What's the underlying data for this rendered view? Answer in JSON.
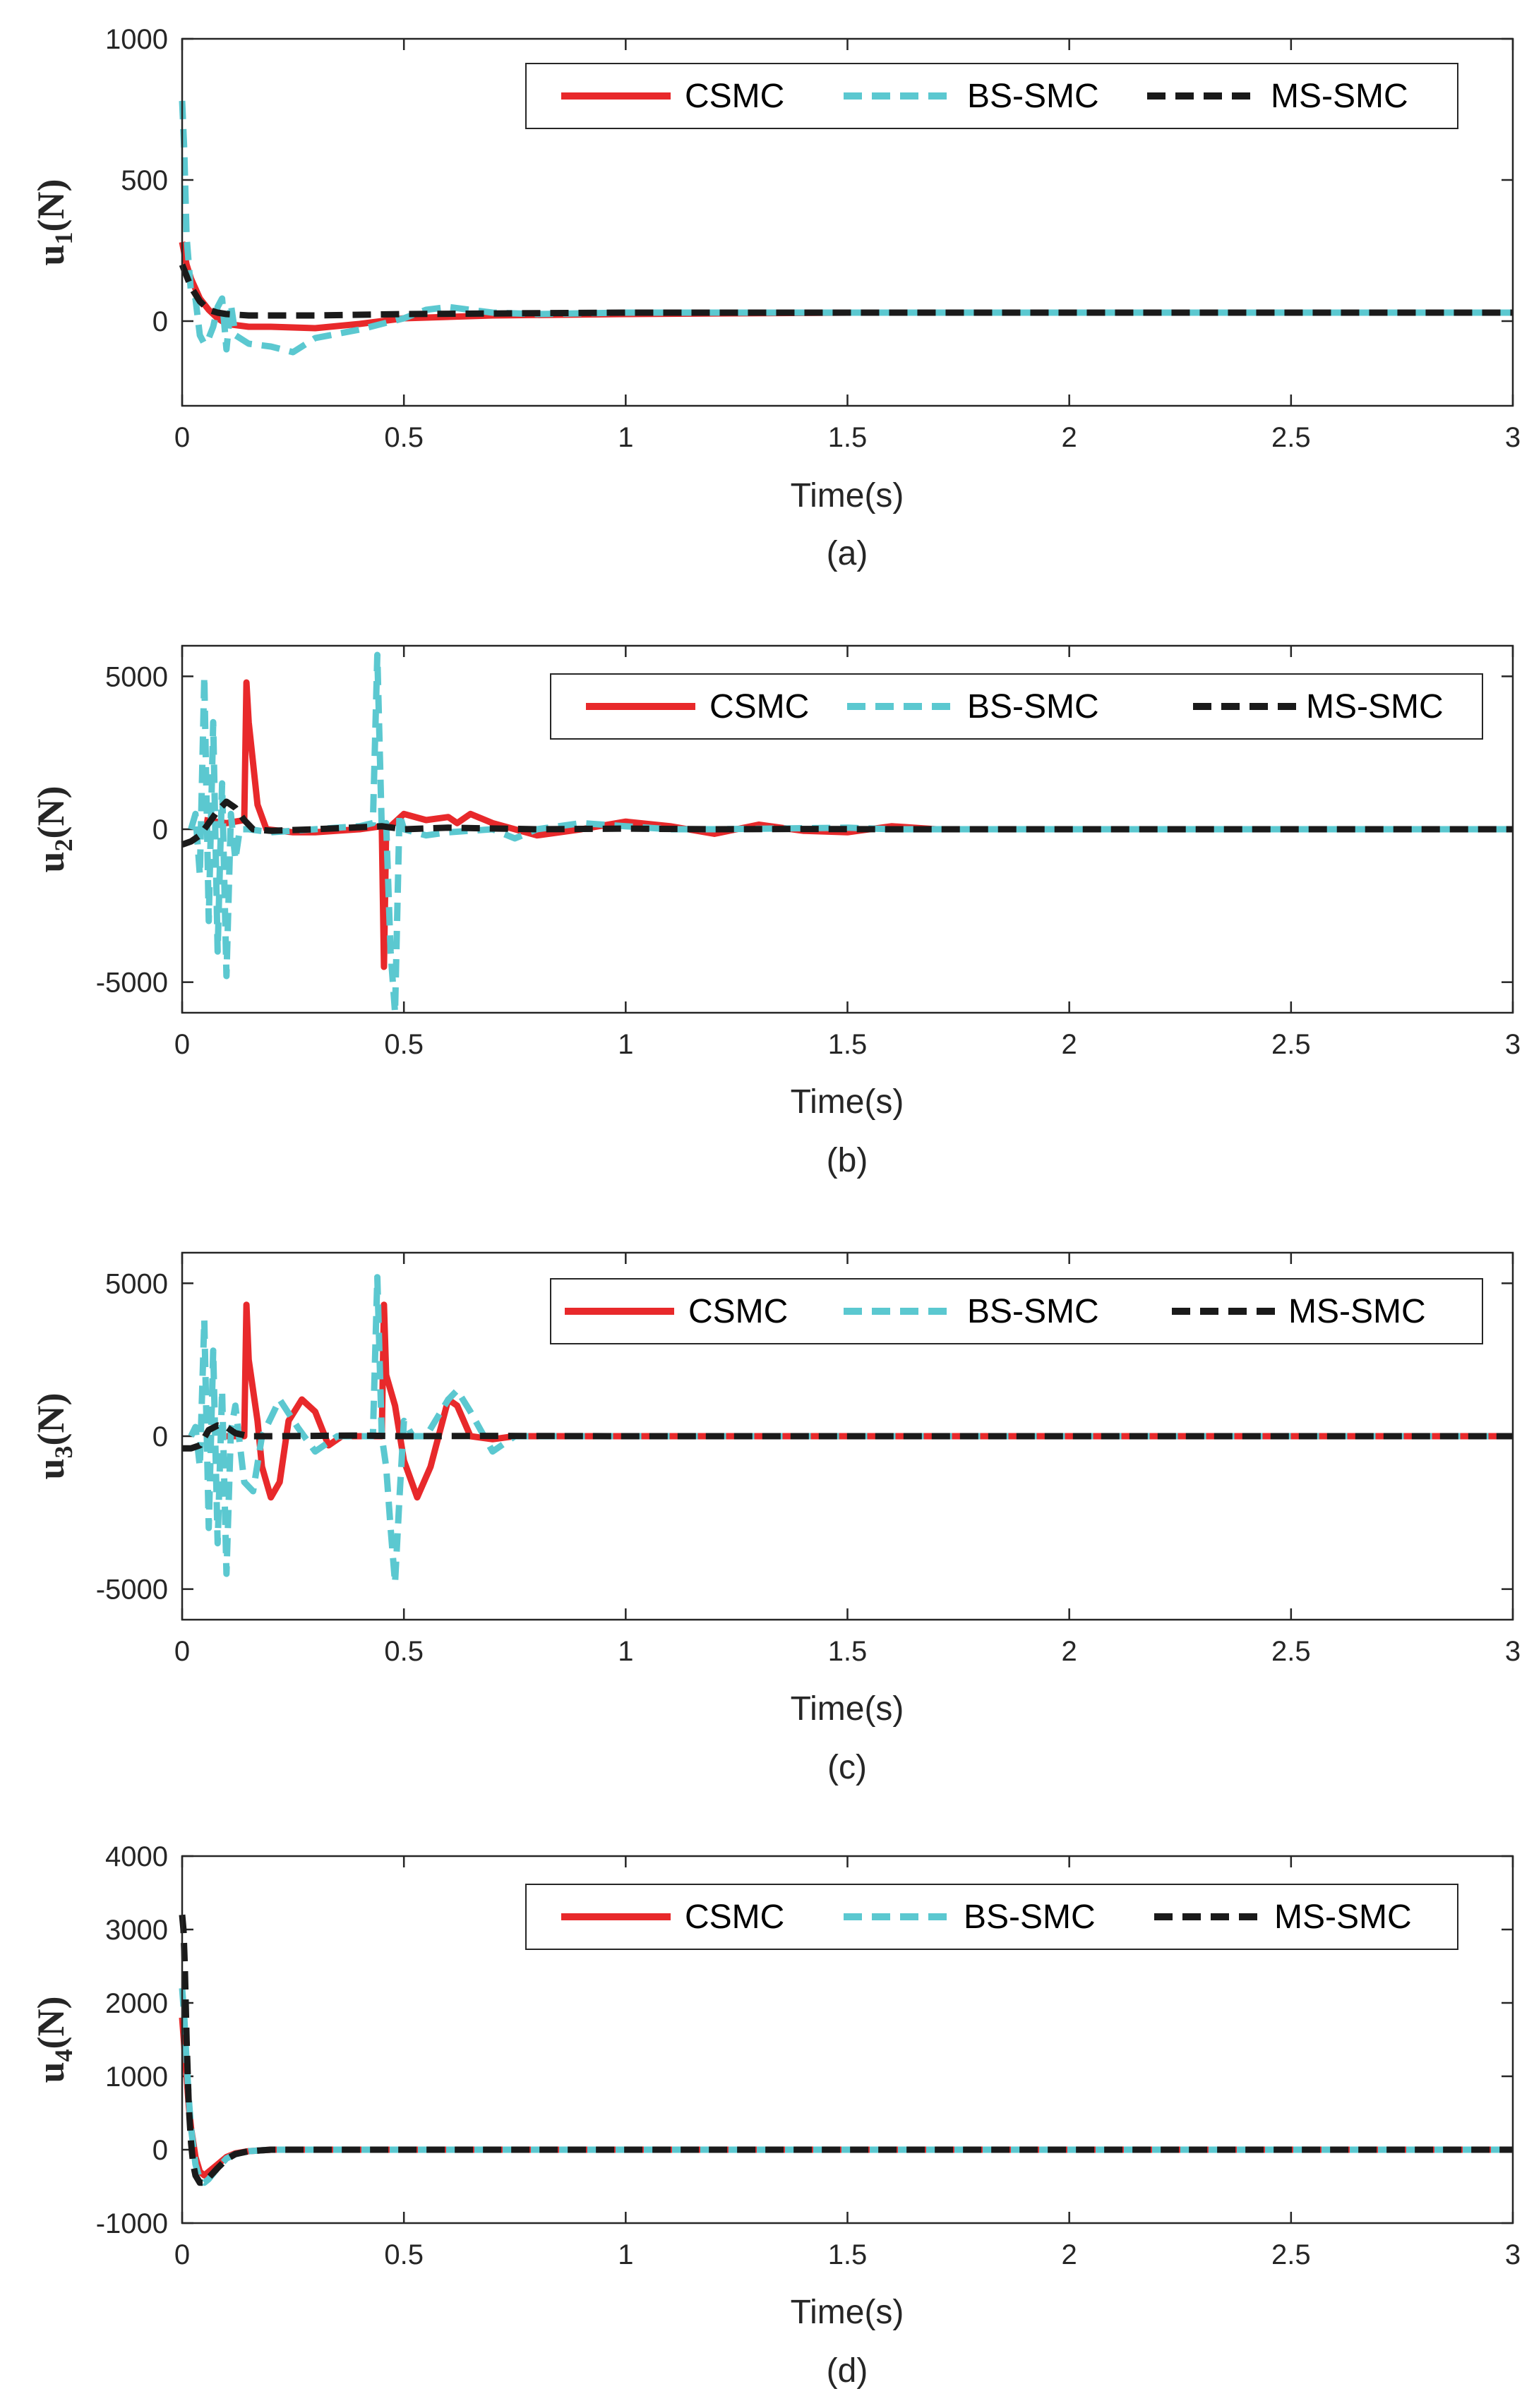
{
  "colors": {
    "CSMC": "#e8292b",
    "BS-SMC": "#5bc8d0",
    "MS-SMC": "#1a1a1a",
    "axis": "#262626",
    "background": "#ffffff"
  },
  "chart_data": [
    {
      "type": "line",
      "caption": "(a)",
      "xlabel": "Time(s)",
      "ylabel_main": "u",
      "ylabel_sub": "1",
      "ylabel_unit": "(N)",
      "xlim": [
        0,
        3
      ],
      "ylim": [
        -300,
        1000
      ],
      "xticks": [
        0,
        0.5,
        1,
        1.5,
        2,
        2.5,
        3
      ],
      "xtick_labels": [
        "0",
        "0.5",
        "1",
        "1.5",
        "2",
        "2.5",
        "3"
      ],
      "yticks": [
        1000,
        500,
        0
      ],
      "ytick_labels": [
        "1000",
        "500",
        "0"
      ],
      "legend": [
        "CSMC",
        "BS-SMC",
        "MS-SMC"
      ],
      "series": [
        {
          "name": "CSMC",
          "style": "solid",
          "x": [
            0,
            0.01,
            0.02,
            0.04,
            0.06,
            0.08,
            0.1,
            0.15,
            0.2,
            0.3,
            0.4,
            0.5,
            0.7,
            1,
            1.5,
            2,
            3
          ],
          "y": [
            280,
            200,
            150,
            80,
            40,
            10,
            -10,
            -20,
            -20,
            -25,
            -10,
            10,
            20,
            25,
            30,
            30,
            30
          ]
        },
        {
          "name": "BS-SMC",
          "style": "dashed",
          "x": [
            0,
            0.005,
            0.01,
            0.02,
            0.03,
            0.04,
            0.05,
            0.06,
            0.07,
            0.08,
            0.09,
            0.1,
            0.11,
            0.12,
            0.15,
            0.2,
            0.25,
            0.3,
            0.4,
            0.5,
            0.55,
            0.6,
            0.7,
            0.8,
            1,
            1.5,
            3
          ],
          "y": [
            780,
            600,
            300,
            100,
            80,
            -50,
            -80,
            -60,
            -20,
            50,
            80,
            -100,
            60,
            -50,
            -80,
            -90,
            -110,
            -60,
            -30,
            10,
            40,
            50,
            30,
            25,
            30,
            30,
            30
          ]
        },
        {
          "name": "MS-SMC",
          "style": "dashed",
          "x": [
            0,
            0.01,
            0.02,
            0.04,
            0.06,
            0.08,
            0.1,
            0.15,
            0.2,
            0.3,
            0.5,
            1,
            1.5,
            3
          ],
          "y": [
            200,
            160,
            120,
            70,
            40,
            30,
            25,
            20,
            20,
            20,
            25,
            30,
            30,
            30
          ]
        }
      ]
    },
    {
      "type": "line",
      "caption": "(b)",
      "xlabel": "Time(s)",
      "ylabel_main": "u",
      "ylabel_sub": "2",
      "ylabel_unit": "(N)",
      "xlim": [
        0,
        3
      ],
      "ylim": [
        -6000,
        6000
      ],
      "xticks": [
        0,
        0.5,
        1,
        1.5,
        2,
        2.5,
        3
      ],
      "xtick_labels": [
        "0",
        "0.5",
        "1",
        "1.5",
        "2",
        "2.5",
        "3"
      ],
      "yticks": [
        5000,
        0,
        -5000
      ],
      "ytick_labels": [
        "5000",
        "0",
        "-5000"
      ],
      "legend": [
        "CSMC",
        "BS-SMC",
        "MS-SMC"
      ],
      "series": [
        {
          "name": "CSMC",
          "style": "solid",
          "x": [
            0.05,
            0.1,
            0.14,
            0.145,
            0.15,
            0.17,
            0.19,
            0.25,
            0.3,
            0.4,
            0.45,
            0.455,
            0.46,
            0.47,
            0.5,
            0.55,
            0.6,
            0.62,
            0.65,
            0.7,
            0.8,
            0.9,
            1,
            1.1,
            1.2,
            1.3,
            1.4,
            1.5,
            1.6,
            1.7,
            2,
            3
          ],
          "y": [
            300,
            200,
            300,
            4800,
            3500,
            800,
            0,
            -100,
            -100,
            0,
            100,
            -4500,
            0,
            100,
            500,
            300,
            400,
            200,
            500,
            200,
            -200,
            0,
            250,
            100,
            -150,
            150,
            -50,
            -100,
            100,
            0,
            0,
            0
          ]
        },
        {
          "name": "BS-SMC",
          "style": "dashed",
          "x": [
            0.02,
            0.03,
            0.04,
            0.05,
            0.06,
            0.07,
            0.08,
            0.09,
            0.1,
            0.11,
            0.12,
            0.13,
            0.15,
            0.2,
            0.3,
            0.4,
            0.43,
            0.44,
            0.45,
            0.46,
            0.47,
            0.48,
            0.49,
            0.5,
            0.55,
            0.6,
            0.7,
            0.75,
            0.8,
            0.9,
            1,
            1.1,
            1.2,
            1.5,
            1.6,
            2,
            3
          ],
          "y": [
            0,
            500,
            -1500,
            5000,
            -3000,
            3500,
            -4000,
            1500,
            -4800,
            500,
            -1000,
            0,
            0,
            -100,
            0,
            100,
            200,
            5700,
            0,
            200,
            -4000,
            -6000,
            500,
            0,
            -200,
            -100,
            0,
            -300,
            0,
            200,
            100,
            0,
            0,
            50,
            0,
            0,
            0
          ]
        },
        {
          "name": "MS-SMC",
          "style": "dashed",
          "x": [
            0,
            0.02,
            0.04,
            0.06,
            0.08,
            0.1,
            0.12,
            0.14,
            0.16,
            0.2,
            0.3,
            0.45,
            0.5,
            0.6,
            0.8,
            1,
            1.2,
            1.4,
            1.6,
            2,
            3
          ],
          "y": [
            -500,
            -400,
            -200,
            200,
            600,
            900,
            700,
            300,
            0,
            -50,
            0,
            100,
            0,
            50,
            0,
            20,
            0,
            10,
            0,
            0,
            0
          ]
        }
      ]
    },
    {
      "type": "line",
      "caption": "(c)",
      "xlabel": "Time(s)",
      "ylabel_main": "u",
      "ylabel_sub": "3",
      "ylabel_unit": "(N)",
      "xlim": [
        0,
        3
      ],
      "ylim": [
        -6000,
        6000
      ],
      "xticks": [
        0,
        0.5,
        1,
        1.5,
        2,
        2.5,
        3
      ],
      "xtick_labels": [
        "0",
        "0.5",
        "1",
        "1.5",
        "2",
        "2.5",
        "3"
      ],
      "yticks": [
        5000,
        0,
        -5000
      ],
      "ytick_labels": [
        "5000",
        "0",
        "-5000"
      ],
      "legend": [
        "CSMC",
        "BS-SMC",
        "MS-SMC"
      ],
      "series": [
        {
          "name": "CSMC",
          "style": "solid",
          "x": [
            0.1,
            0.14,
            0.145,
            0.15,
            0.17,
            0.18,
            0.2,
            0.22,
            0.24,
            0.27,
            0.3,
            0.33,
            0.36,
            0.4,
            0.45,
            0.455,
            0.46,
            0.48,
            0.5,
            0.53,
            0.56,
            0.6,
            0.62,
            0.65,
            0.7,
            0.75,
            1,
            3
          ],
          "y": [
            0,
            0,
            4300,
            2500,
            500,
            -1000,
            -2000,
            -1500,
            500,
            1200,
            800,
            -300,
            0,
            0,
            0,
            4300,
            2000,
            1000,
            -800,
            -2000,
            -1000,
            1200,
            1000,
            0,
            -100,
            0,
            0,
            0
          ]
        },
        {
          "name": "BS-SMC",
          "style": "dashed",
          "x": [
            0.02,
            0.03,
            0.04,
            0.05,
            0.06,
            0.07,
            0.08,
            0.09,
            0.1,
            0.11,
            0.12,
            0.14,
            0.16,
            0.18,
            0.22,
            0.26,
            0.3,
            0.35,
            0.4,
            0.43,
            0.44,
            0.45,
            0.46,
            0.47,
            0.48,
            0.49,
            0.5,
            0.52,
            0.55,
            0.6,
            0.62,
            0.65,
            0.7,
            0.75,
            0.8,
            1,
            3
          ],
          "y": [
            0,
            300,
            -1000,
            3800,
            -3000,
            2800,
            -3500,
            1500,
            -4500,
            200,
            1000,
            -1500,
            -1800,
            0,
            1200,
            300,
            -500,
            0,
            0,
            0,
            5200,
            0,
            -1000,
            -3000,
            -4800,
            -2000,
            500,
            0,
            0,
            1200,
            1500,
            800,
            -500,
            0,
            0,
            0,
            0
          ]
        },
        {
          "name": "MS-SMC",
          "style": "dashed",
          "x": [
            0,
            0.02,
            0.04,
            0.06,
            0.08,
            0.1,
            0.12,
            0.15,
            0.2,
            0.4,
            0.5,
            0.7,
            1,
            3
          ],
          "y": [
            -400,
            -400,
            -300,
            200,
            350,
            300,
            100,
            0,
            0,
            20,
            0,
            10,
            0,
            0
          ]
        }
      ]
    },
    {
      "type": "line",
      "caption": "(d)",
      "xlabel": "Time(s)",
      "ylabel_main": "u",
      "ylabel_sub": "4",
      "ylabel_unit": "(N)",
      "xlim": [
        0,
        3
      ],
      "ylim": [
        -1000,
        4000
      ],
      "xticks": [
        0,
        0.5,
        1,
        1.5,
        2,
        2.5,
        3
      ],
      "xtick_labels": [
        "0",
        "0.5",
        "1",
        "1.5",
        "2",
        "2.5",
        "3"
      ],
      "yticks": [
        4000,
        3000,
        2000,
        1000,
        0,
        -1000
      ],
      "ytick_labels": [
        "4000",
        "3000",
        "2000",
        "1000",
        "0",
        "-1000"
      ],
      "legend": [
        "CSMC",
        "BS-SMC",
        "MS-SMC"
      ],
      "series": [
        {
          "name": "CSMC",
          "style": "solid",
          "x": [
            0,
            0.005,
            0.01,
            0.015,
            0.02,
            0.03,
            0.04,
            0.05,
            0.06,
            0.08,
            0.1,
            0.12,
            0.15,
            0.2,
            0.3,
            0.5,
            1,
            3
          ],
          "y": [
            1800,
            1400,
            1000,
            600,
            300,
            -100,
            -300,
            -350,
            -300,
            -200,
            -100,
            -50,
            -20,
            0,
            0,
            0,
            0,
            0
          ]
        },
        {
          "name": "BS-SMC",
          "style": "dashed",
          "x": [
            0,
            0.005,
            0.01,
            0.015,
            0.02,
            0.03,
            0.04,
            0.05,
            0.06,
            0.08,
            0.1,
            0.12,
            0.15,
            0.2,
            0.3,
            0.5,
            1,
            3
          ],
          "y": [
            2200,
            1800,
            1200,
            700,
            300,
            -200,
            -400,
            -450,
            -400,
            -250,
            -120,
            -60,
            -20,
            0,
            0,
            0,
            0,
            0
          ]
        },
        {
          "name": "MS-SMC",
          "style": "dashed",
          "x": [
            0,
            0.003,
            0.006,
            0.01,
            0.015,
            0.02,
            0.025,
            0.03,
            0.04,
            0.05,
            0.06,
            0.08,
            0.1,
            0.12,
            0.15,
            0.2,
            0.3,
            0.5,
            1,
            3
          ],
          "y": [
            3200,
            3000,
            2500,
            1500,
            600,
            100,
            -200,
            -350,
            -450,
            -450,
            -380,
            -250,
            -130,
            -60,
            -20,
            0,
            0,
            0,
            0,
            0
          ]
        }
      ]
    }
  ]
}
